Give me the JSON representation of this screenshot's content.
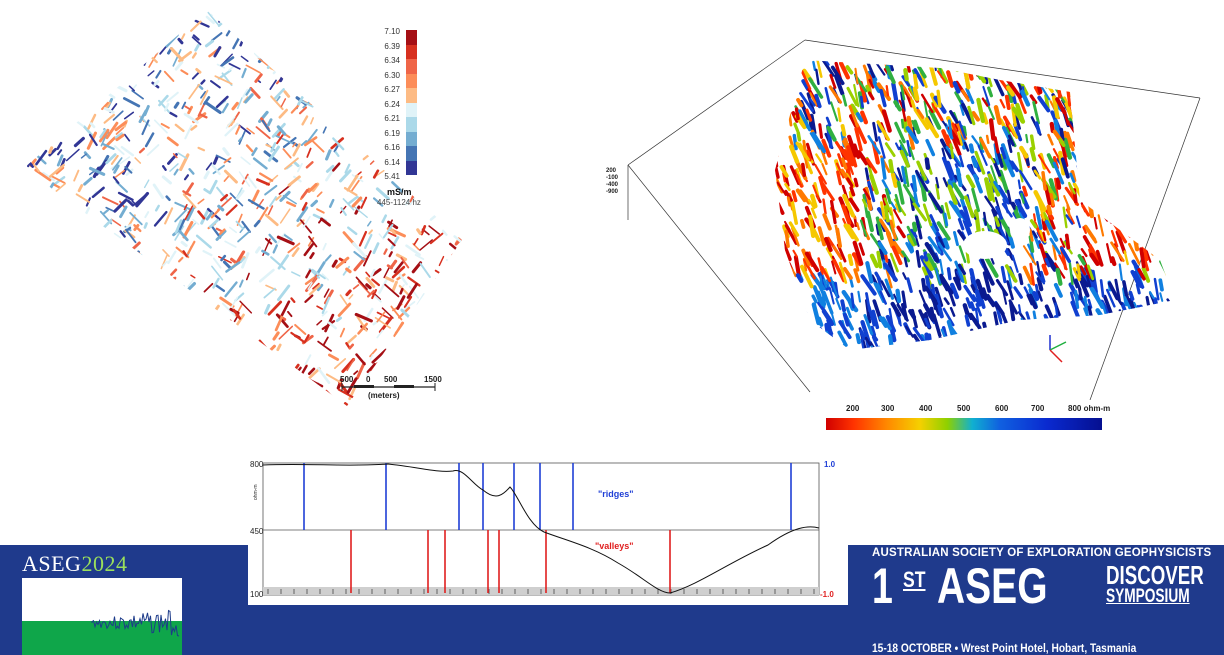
{
  "map_legend": {
    "values": [
      "7.10",
      "6.39",
      "6.34",
      "6.30",
      "6.27",
      "6.24",
      "6.21",
      "6.19",
      "6.16",
      "6.14",
      "5.41"
    ],
    "colors": [
      "#a50f15",
      "#d7301f",
      "#ef6548",
      "#fc8d59",
      "#fdbb84",
      "#e0f3f8",
      "#abd9e9",
      "#74add1",
      "#4575b4",
      "#313695"
    ],
    "unit": "mS/m",
    "frequency": "445-1124 hz"
  },
  "scale_bar": {
    "labels": [
      "500",
      "0",
      "500",
      "1500"
    ],
    "unit": "(meters)"
  },
  "volume_axis": {
    "depth_labels": [
      "200",
      "-100",
      "-400",
      "-900"
    ]
  },
  "resistivity_bar": {
    "labels": [
      "200",
      "300",
      "400",
      "500",
      "600",
      "700",
      "800 ohm-m"
    ]
  },
  "profile": {
    "y_top": "800",
    "y_mid": "450",
    "y_bottom": "100",
    "y_unit": "ohm-m",
    "right_top": "1.0",
    "right_bottom": "-1.0",
    "ridges_label": "\"ridges\"",
    "valleys_label": "\"valleys\"",
    "ridge_color": "#1f3fd6",
    "valley_color": "#e01f1f"
  },
  "logo": {
    "name": "ASEG",
    "year": "2024"
  },
  "symposium": {
    "society": "AUSTRALIAN SOCIETY OF EXPLORATION GEOPHYSICISTS",
    "number": "1",
    "suffix": "ST",
    "org": "ASEG",
    "line1": "DISCOVER",
    "line2": "SYMPOSIUM",
    "date_place": "15-18 OCTOBER  •  Wrest Point Hotel, Hobart, Tasmania"
  },
  "banner_color": "#1f3a8c"
}
